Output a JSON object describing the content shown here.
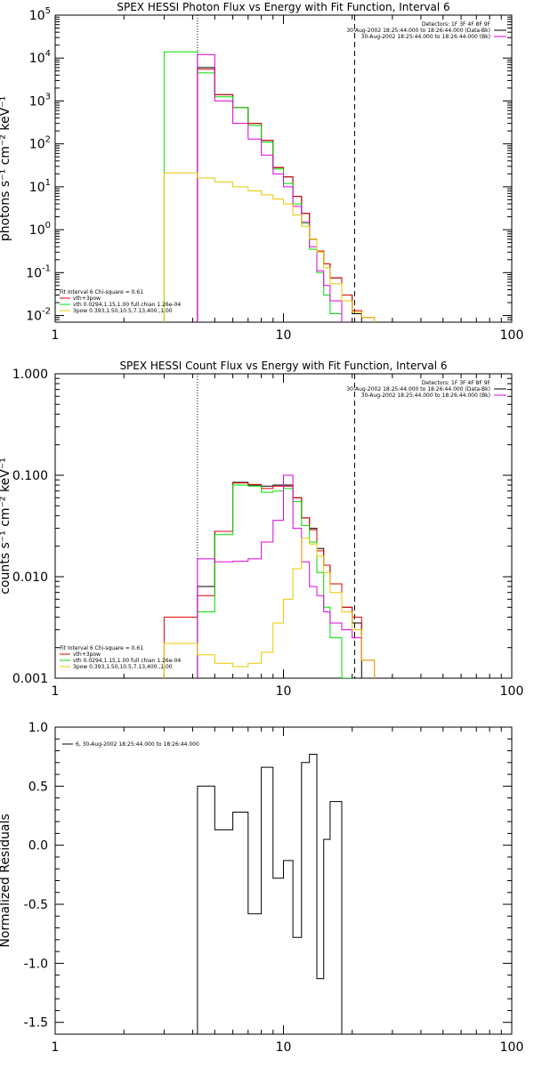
{
  "colors": {
    "black": "#000000",
    "red": "#dd0000",
    "green": "#00dd00",
    "magenta": "#dd00dd",
    "yellow": "#e8c800"
  },
  "chart_data": [
    {
      "type": "line",
      "title": "SPEX HESSI Photon Flux vs Energy with Fit Function, Interval 6",
      "ylabel": "photons s⁻¹ cm⁻² keV⁻¹",
      "xscale": "log",
      "yscale": "log",
      "xlim": [
        1,
        100
      ],
      "ylim": [
        0.007,
        100000
      ],
      "xticks": [
        {
          "v": 1,
          "label": "1"
        },
        {
          "v": 10,
          "label": "10"
        },
        {
          "v": 100,
          "label": "100"
        }
      ],
      "yticks": [
        {
          "v": 0.01,
          "base": "10",
          "exp": "-2"
        },
        {
          "v": 0.1,
          "base": "10",
          "exp": "-1"
        },
        {
          "v": 1,
          "base": "10",
          "exp": "0"
        },
        {
          "v": 10,
          "base": "10",
          "exp": "1"
        },
        {
          "v": 100,
          "base": "10",
          "exp": "2"
        },
        {
          "v": 1000,
          "base": "10",
          "exp": "3"
        },
        {
          "v": 10000,
          "base": "10",
          "exp": "4"
        },
        {
          "v": 100000,
          "base": "10",
          "exp": "5"
        }
      ],
      "vlines": [
        {
          "x": 4.2,
          "style": "dotted"
        },
        {
          "x": 20.5,
          "style": "dashed"
        }
      ],
      "legend_top_right": [
        {
          "text": "Detectors: 1F 3F 4F 8F 9F",
          "color": ""
        },
        {
          "text": "30-Aug-2002 18:25:44.000 to 18:26:44.000 (Data-Bk)",
          "color": "black"
        },
        {
          "text": "30-Aug-2002 18:25:44.000 to 18:26:44.000 (Bk)",
          "color": "magenta"
        }
      ],
      "legend_bottom_left": [
        {
          "text": "Fit Interval 6   Chi-square = 0.61",
          "color": ""
        },
        {
          "text": "vth+3pow",
          "color": "red"
        },
        {
          "text": "vth 0.0294,1.15,1.00  full chian 1.26e-04",
          "color": "green"
        },
        {
          "text": "3pow 0.393,1.50,10.5,7.13,400.,1.00",
          "color": "yellow"
        }
      ],
      "edges": [
        3,
        4.2,
        5,
        6,
        7,
        8,
        9,
        10,
        11,
        12,
        13,
        14,
        15,
        16,
        18,
        20,
        22,
        25
      ],
      "series": [
        {
          "color": "black",
          "values": [
            null,
            6000,
            1400,
            700,
            300,
            120,
            28,
            17,
            6,
            2.4,
            0.6,
            0.32,
            0.16,
            0.075,
            0.03,
            0.011,
            null
          ]
        },
        {
          "color": "red",
          "values": [
            null,
            5500,
            1400,
            700,
            300,
            120,
            28,
            17,
            6,
            2.4,
            0.6,
            0.32,
            0.16,
            0.075,
            0.03,
            0.013,
            0.009
          ]
        },
        {
          "color": "green",
          "values": [
            14000,
            4500,
            1250,
            700,
            270,
            110,
            26,
            12,
            4,
            1.4,
            0.35,
            0.1,
            0.03,
            0.011,
            null,
            null,
            null
          ]
        },
        {
          "color": "magenta",
          "values": [
            null,
            12000,
            1000,
            300,
            130,
            55,
            20,
            10,
            3.5,
            1.5,
            0.4,
            0.11,
            0.05,
            0.022,
            null,
            null,
            null
          ]
        },
        {
          "color": "yellow",
          "values": [
            21,
            16,
            13,
            10,
            8,
            6.5,
            5.2,
            4,
            2.2,
            1.2,
            0.6,
            0.3,
            0.13,
            0.055,
            0.022,
            0.012,
            0.009
          ]
        }
      ]
    },
    {
      "type": "line",
      "title": "SPEX HESSI Count Flux vs Energy with Fit Function, Interval 6",
      "ylabel": "counts s⁻¹ cm⁻² keV⁻¹",
      "xscale": "log",
      "yscale": "log",
      "xlim": [
        1,
        100
      ],
      "ylim": [
        0.001,
        1
      ],
      "xticks": [
        {
          "v": 1,
          "label": "1"
        },
        {
          "v": 10,
          "label": "10"
        },
        {
          "v": 100,
          "label": "100"
        }
      ],
      "yticks": [
        {
          "v": 0.001,
          "label": "0.001"
        },
        {
          "v": 0.01,
          "label": "0.010"
        },
        {
          "v": 0.1,
          "label": "0.100"
        },
        {
          "v": 1,
          "label": "1.000"
        }
      ],
      "vlines": [
        {
          "x": 4.2,
          "style": "dotted"
        },
        {
          "x": 20.5,
          "style": "dashed"
        }
      ],
      "legend_top_right": [
        {
          "text": "Detectors: 1F 3F 4F 8F 9F",
          "color": ""
        },
        {
          "text": "30-Aug-2002 18:25:44.000 to 18:26:44.000 (Data-Bk)",
          "color": "black"
        },
        {
          "text": "30-Aug-2002 18:25:44.000 to 18:26:44.000 (Bk)",
          "color": "magenta"
        }
      ],
      "legend_bottom_left": [
        {
          "text": "Fit Interval 6   Chi-square = 0.61",
          "color": ""
        },
        {
          "text": "vth+3pow",
          "color": "red"
        },
        {
          "text": "vth 0.0294,1.15,1.00  full chian 1.26e-04",
          "color": "green"
        },
        {
          "text": "3pow 0.393,1.50,10.5,7.13,400.,1.00",
          "color": "yellow"
        }
      ],
      "edges": [
        3,
        4.2,
        5,
        6,
        7,
        8,
        9,
        10,
        11,
        12,
        13,
        14,
        15,
        16,
        18,
        20,
        22,
        25
      ],
      "series": [
        {
          "color": "black",
          "values": [
            null,
            0.008,
            0.028,
            0.085,
            0.08,
            0.078,
            0.08,
            0.08,
            0.06,
            0.038,
            0.03,
            0.019,
            0.013,
            0.0085,
            0.005,
            0.0035,
            null
          ]
        },
        {
          "color": "red",
          "values": [
            0.004,
            0.0065,
            0.028,
            0.084,
            0.081,
            0.074,
            0.078,
            0.078,
            0.06,
            0.038,
            0.029,
            0.018,
            0.013,
            0.0085,
            0.005,
            0.004,
            0.0015
          ]
        },
        {
          "color": "green",
          "values": [
            null,
            0.0045,
            0.026,
            0.08,
            0.078,
            0.068,
            0.07,
            0.074,
            0.055,
            0.032,
            0.022,
            0.011,
            0.005,
            0.0025,
            0.001,
            null,
            null
          ]
        },
        {
          "color": "magenta",
          "values": [
            null,
            0.015,
            0.014,
            0.0142,
            0.015,
            0.022,
            0.036,
            0.1,
            0.03,
            0.014,
            0.008,
            0.0065,
            0.0045,
            0.0035,
            0.003,
            0.0025,
            0.0015
          ]
        },
        {
          "color": "yellow",
          "values": [
            0.0022,
            0.0017,
            0.0014,
            0.0013,
            0.0014,
            0.0018,
            0.0035,
            0.006,
            0.012,
            0.024,
            0.021,
            0.016,
            0.011,
            0.007,
            0.0045,
            0.003,
            0.0015
          ]
        }
      ]
    },
    {
      "type": "line",
      "title": "",
      "ylabel": "Normalized Residuals",
      "xscale": "log",
      "yscale": "linear",
      "xlim": [
        1,
        100
      ],
      "ylim": [
        -1.6,
        1.0
      ],
      "xticks": [
        {
          "v": 1,
          "label": "1"
        },
        {
          "v": 10,
          "label": "10"
        },
        {
          "v": 100,
          "label": "100"
        }
      ],
      "yticks": [
        {
          "v": -1.5,
          "label": "-1.5"
        },
        {
          "v": -1.0,
          "label": "-1.0"
        },
        {
          "v": -0.5,
          "label": "-0.5"
        },
        {
          "v": 0.0,
          "label": "0.0"
        },
        {
          "v": 0.5,
          "label": "0.5"
        },
        {
          "v": 1.0,
          "label": "1.0"
        }
      ],
      "vlines": [],
      "legend_top_left": [
        {
          "text": "6, 30-Aug-2002 18:25:44.000 to 18:26:44.000",
          "color": "black"
        }
      ],
      "edges": [
        4.2,
        5,
        6,
        7,
        8,
        9,
        10,
        11,
        12,
        13,
        14,
        15,
        16,
        18,
        20.5
      ],
      "baseline": -1.6,
      "series": [
        {
          "color": "black",
          "values": [
            0.5,
            0.13,
            0.28,
            -0.58,
            0.66,
            -0.28,
            -0.13,
            -0.78,
            0.7,
            0.77,
            -1.13,
            0.05,
            0.37,
            null
          ]
        }
      ]
    }
  ]
}
